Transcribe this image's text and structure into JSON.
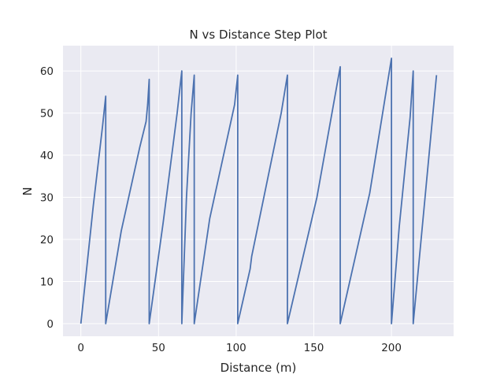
{
  "chart_data": {
    "type": "line",
    "title": "N vs Distance Step Plot",
    "xlabel": "Distance (m)",
    "ylabel": "N",
    "xlim": [
      -11.5,
      240
    ],
    "ylim": [
      -3,
      66
    ],
    "xticks": [
      0,
      50,
      100,
      150,
      200
    ],
    "yticks": [
      0,
      10,
      20,
      30,
      40,
      50,
      60
    ],
    "grid": true,
    "background": "#eaeaf2",
    "grid_color": "#ffffff",
    "series": [
      {
        "name": "",
        "color": "#4c72b0",
        "points": [
          [
            0,
            0
          ],
          [
            8,
            28
          ],
          [
            14,
            47
          ],
          [
            16,
            54
          ],
          [
            16,
            0
          ],
          [
            26,
            22
          ],
          [
            38,
            42
          ],
          [
            42,
            48
          ],
          [
            43,
            52
          ],
          [
            44,
            58
          ],
          [
            44,
            0
          ],
          [
            53,
            24
          ],
          [
            62,
            50
          ],
          [
            65,
            60
          ],
          [
            65,
            0
          ],
          [
            68,
            30
          ],
          [
            71,
            50
          ],
          [
            73,
            59
          ],
          [
            73,
            0
          ],
          [
            83,
            25
          ],
          [
            99,
            52
          ],
          [
            101,
            59
          ],
          [
            101,
            0
          ],
          [
            109,
            13
          ],
          [
            110,
            16
          ],
          [
            129,
            50
          ],
          [
            133,
            59
          ],
          [
            133,
            0
          ],
          [
            152,
            30
          ],
          [
            167,
            61
          ],
          [
            167,
            0
          ],
          [
            186,
            31
          ],
          [
            200,
            63
          ],
          [
            200,
            0
          ],
          [
            205,
            23
          ],
          [
            212,
            49
          ],
          [
            214,
            60
          ],
          [
            214,
            0
          ],
          [
            229,
            59
          ]
        ]
      }
    ]
  }
}
